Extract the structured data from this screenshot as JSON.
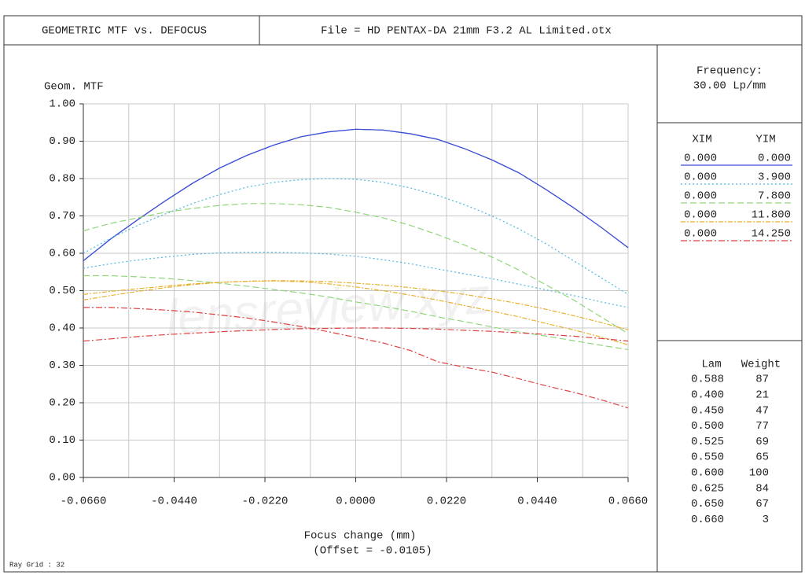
{
  "chart_data": {
    "type": "line",
    "title": "GEOMETRIC MTF vs. DEFOCUS",
    "file": "File = HD PENTAX-DA 21mm F3.2 AL Limited.otx",
    "y_label": "Geom. MTF",
    "x_label": "Focus change (mm)",
    "x_offset_label": "(Offset = -0.0105)",
    "watermark": "lensreview.xyz",
    "ray_grid": "Ray Grid : 32",
    "frequency_label": "Frequency:",
    "frequency": "30.00  Lp/mm",
    "field_headers": [
      "XIM",
      "YIM"
    ],
    "wavelength_headers": [
      "Lam",
      "Weight"
    ],
    "wavelengths": [
      [
        "0.588",
        "87"
      ],
      [
        "0.400",
        "21"
      ],
      [
        "0.450",
        "47"
      ],
      [
        "0.500",
        "77"
      ],
      [
        "0.525",
        "69"
      ],
      [
        "0.550",
        "65"
      ],
      [
        "0.600",
        "100"
      ],
      [
        "0.625",
        "84"
      ],
      [
        "0.650",
        "67"
      ],
      [
        "0.660",
        "3"
      ]
    ],
    "grid": true,
    "xlim": [
      -0.066,
      0.066
    ],
    "ylim": [
      0,
      1
    ],
    "xticks": [
      {
        "value": -0.066,
        "label": "-0.0660"
      },
      {
        "value": -0.044,
        "label": "-0.0440"
      },
      {
        "value": -0.022,
        "label": "-0.0220"
      },
      {
        "value": 0,
        "label": "0.0000"
      },
      {
        "value": 0.022,
        "label": "0.0220"
      },
      {
        "value": 0.044,
        "label": "0.0440"
      },
      {
        "value": 0.066,
        "label": "0.0660"
      }
    ],
    "yticks": [
      {
        "value": 0,
        "label": "0.00"
      },
      {
        "value": 0.1,
        "label": "0.10"
      },
      {
        "value": 0.2,
        "label": "0.20"
      },
      {
        "value": 0.3,
        "label": "0.30"
      },
      {
        "value": 0.4,
        "label": "0.40"
      },
      {
        "value": 0.5,
        "label": "0.50"
      },
      {
        "value": 0.6,
        "label": "0.60"
      },
      {
        "value": 0.7,
        "label": "0.70"
      },
      {
        "value": 0.8,
        "label": "0.80"
      },
      {
        "value": 0.9,
        "label": "0.90"
      },
      {
        "value": 1,
        "label": "1.00"
      }
    ],
    "x": [
      -0.066,
      -0.0594,
      -0.0528,
      -0.0462,
      -0.0396,
      -0.033,
      -0.0264,
      -0.0198,
      -0.0132,
      -0.0066,
      0,
      0.0066,
      0.0132,
      0.0198,
      0.0264,
      0.033,
      0.0396,
      0.0462,
      0.0528,
      0.0594,
      0.066
    ],
    "fields": [
      {
        "xim": "0.000",
        "yim": "0.000",
        "color": "#3b4fd8",
        "dash": "",
        "tangential": [
          0.58,
          0.638,
          0.69,
          0.74,
          0.787,
          0.828,
          0.862,
          0.89,
          0.912,
          0.925,
          0.932,
          0.93,
          0.92,
          0.905,
          0.88,
          0.85,
          0.815,
          0.77,
          0.722,
          0.67,
          0.615
        ],
        "sagittal": [
          0.58,
          0.638,
          0.69,
          0.74,
          0.787,
          0.828,
          0.862,
          0.89,
          0.912,
          0.925,
          0.932,
          0.93,
          0.92,
          0.905,
          0.88,
          0.85,
          0.815,
          0.77,
          0.722,
          0.67,
          0.615
        ]
      },
      {
        "xim": "0.000",
        "yim": "3.900",
        "color": "#4cb8e0",
        "dash": "2,3",
        "tangential": [
          0.56,
          0.572,
          0.582,
          0.59,
          0.597,
          0.601,
          0.603,
          0.603,
          0.601,
          0.598,
          0.592,
          0.583,
          0.572,
          0.558,
          0.545,
          0.532,
          0.517,
          0.502,
          0.487,
          0.47,
          0.455
        ],
        "sagittal": [
          0.6,
          0.64,
          0.675,
          0.705,
          0.733,
          0.757,
          0.777,
          0.79,
          0.797,
          0.8,
          0.798,
          0.79,
          0.775,
          0.755,
          0.73,
          0.7,
          0.665,
          0.625,
          0.58,
          0.535,
          0.49
        ]
      },
      {
        "xim": "0.000",
        "yim": "7.800",
        "color": "#8fd67a",
        "dash": "8,4",
        "tangential": [
          0.54,
          0.54,
          0.537,
          0.533,
          0.527,
          0.52,
          0.512,
          0.503,
          0.494,
          0.483,
          0.47,
          0.458,
          0.445,
          0.43,
          0.417,
          0.403,
          0.39,
          0.378,
          0.366,
          0.354,
          0.342
        ],
        "sagittal": [
          0.66,
          0.68,
          0.695,
          0.71,
          0.72,
          0.728,
          0.733,
          0.733,
          0.73,
          0.723,
          0.71,
          0.695,
          0.675,
          0.65,
          0.622,
          0.59,
          0.555,
          0.515,
          0.475,
          0.43,
          0.385
        ]
      },
      {
        "xim": "0.000",
        "yim": "11.800",
        "color": "#e8b030",
        "dash": "6,2,2,2",
        "tangential": [
          0.475,
          0.487,
          0.498,
          0.508,
          0.516,
          0.522,
          0.525,
          0.526,
          0.524,
          0.518,
          0.51,
          0.5,
          0.488,
          0.475,
          0.46,
          0.445,
          0.43,
          0.412,
          0.395,
          0.376,
          0.355
        ],
        "sagittal": [
          0.49,
          0.498,
          0.505,
          0.512,
          0.518,
          0.522,
          0.525,
          0.527,
          0.526,
          0.524,
          0.52,
          0.515,
          0.508,
          0.5,
          0.49,
          0.478,
          0.465,
          0.45,
          0.433,
          0.415,
          0.395
        ]
      },
      {
        "xim": "0.000",
        "yim": "14.250",
        "color": "#e04040",
        "dash": "8,3,2,3",
        "tangential": [
          0.455,
          0.455,
          0.452,
          0.448,
          0.443,
          0.435,
          0.427,
          0.416,
          0.404,
          0.39,
          0.375,
          0.36,
          0.34,
          0.31,
          0.295,
          0.282,
          0.264,
          0.245,
          0.228,
          0.208,
          0.186
        ],
        "sagittal": [
          0.365,
          0.371,
          0.377,
          0.382,
          0.386,
          0.39,
          0.393,
          0.396,
          0.398,
          0.399,
          0.4,
          0.4,
          0.399,
          0.397,
          0.394,
          0.391,
          0.387,
          0.383,
          0.378,
          0.372,
          0.365
        ]
      }
    ]
  }
}
